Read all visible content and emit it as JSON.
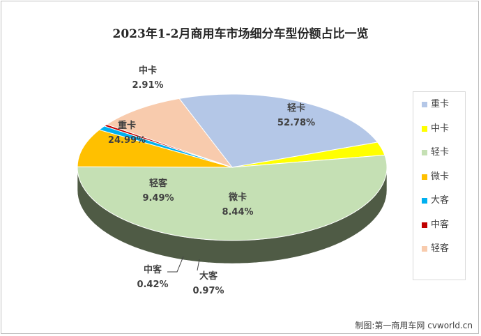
{
  "chart_data": {
    "type": "pie",
    "title": "2023年1-2月商用车市场细分车型份额占比一览",
    "slices": [
      {
        "name": "重卡",
        "value": 24.99,
        "label": "24.99%",
        "color": "#b4c7e7",
        "side": "#8ea2c4"
      },
      {
        "name": "中卡",
        "value": 2.91,
        "label": "2.91%",
        "color": "#ffff00",
        "side": "#c8c800"
      },
      {
        "name": "轻卡",
        "value": 52.78,
        "label": "52.78%",
        "color": "#c5e0b4",
        "side": "#4f5b45"
      },
      {
        "name": "微卡",
        "value": 8.44,
        "label": "8.44%",
        "color": "#ffc000",
        "side": "#8a7a2e"
      },
      {
        "name": "大客",
        "value": 0.97,
        "label": "0.97%",
        "color": "#00b0f0",
        "side": "#0080b0"
      },
      {
        "name": "中客",
        "value": 0.42,
        "label": "0.42%",
        "color": "#c00000",
        "side": "#800000"
      },
      {
        "name": "轻客",
        "value": 9.49,
        "label": "9.49%",
        "color": "#f8cbad",
        "side": "#b89482"
      }
    ],
    "legend": "right"
  },
  "credit": "制图:第一商用车网 cvworld.cn"
}
